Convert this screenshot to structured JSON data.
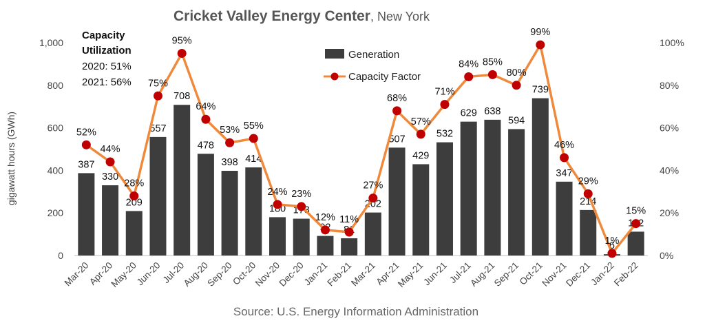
{
  "chart_data": {
    "type": "bar",
    "title": "Cricket Valley Energy Center",
    "subtitle": ", New York",
    "ylabel": "gigawatt hours (GWh)",
    "y2label": "",
    "ylim": [
      0,
      1000
    ],
    "y2lim": [
      0,
      100
    ],
    "yticks": [
      "0",
      "200",
      "400",
      "600",
      "800",
      "1,000"
    ],
    "y2ticks": [
      "0%",
      "20%",
      "40%",
      "60%",
      "80%",
      "100%"
    ],
    "grid": false,
    "legend_placement": "top-center",
    "categories": [
      "Mar-20",
      "Apr-20",
      "May-20",
      "Jun-20",
      "Jul-20",
      "Aug-20",
      "Sep-20",
      "Oct-20",
      "Nov-20",
      "Dec-20",
      "Jan-21",
      "Feb-21",
      "Mar-21",
      "Apr-21",
      "May-21",
      "Jun-21",
      "Jul-21",
      "Aug-21",
      "Sep-21",
      "Oct-21",
      "Nov-21",
      "Dec-21",
      "Jan-22",
      "Feb-22"
    ],
    "series": [
      {
        "name": "Generation",
        "type": "bar",
        "axis": "left",
        "color": "#3d3d3d",
        "values": [
          387,
          330,
          209,
          557,
          708,
          478,
          398,
          414,
          180,
          173,
          92,
          81,
          202,
          507,
          429,
          532,
          629,
          638,
          594,
          739,
          347,
          214,
          6,
          112
        ]
      },
      {
        "name": "Capacity Factor",
        "type": "line",
        "axis": "right",
        "color": "#ef8a3d",
        "marker_color": "#c00000",
        "values": [
          52,
          44,
          28,
          75,
          95,
          64,
          53,
          55,
          24,
          23,
          12,
          11,
          27,
          68,
          57,
          71,
          84,
          85,
          80,
          99,
          46,
          29,
          1,
          15
        ],
        "labels": [
          "52%",
          "44%",
          "28%",
          "75%",
          "95%",
          "64%",
          "53%",
          "55%",
          "24%",
          "23%",
          "12%",
          "11%",
          "27%",
          "68%",
          "57%",
          "71%",
          "84%",
          "85%",
          "80%",
          "99%",
          "46%",
          "29%",
          "1%",
          "15%"
        ]
      }
    ],
    "annotation": {
      "heading_line1": "Capacity",
      "heading_line2": "Utilization",
      "line1": "2020: 51%",
      "line2": "2021: 56%"
    },
    "source": "Source: U.S. Energy Information Administration"
  }
}
